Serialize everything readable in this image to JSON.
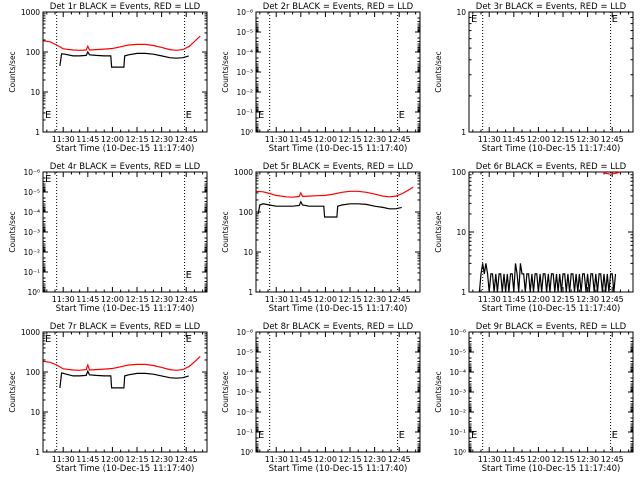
{
  "figure": {
    "x_tick_labels": [
      "11:30",
      "11:45",
      "12:00",
      "12:15",
      "12:30",
      "12:45"
    ],
    "x_tick_minutes": [
      30,
      45,
      60,
      75,
      90,
      105
    ],
    "x_range_minutes": [
      17.67,
      117.67
    ],
    "x_minor_step_minutes": 5,
    "vlines_minutes": [
      26,
      104
    ],
    "marker_glyph": "E",
    "colors": {
      "events": "#000000",
      "lld": "#ff0000"
    }
  },
  "chart_data": [
    {
      "type": "line",
      "title": "Det 1r BLACK = Events, RED = LLD",
      "xlabel": "Start Time (10-Dec-15 11:17:40)",
      "ylabel": "Counts/sec",
      "yscale": "log",
      "ylim": [
        1,
        1000
      ],
      "y_tick_labels": [
        "1",
        "10",
        "100",
        "1000"
      ],
      "markers": [
        "start-left",
        "end-right"
      ],
      "series": [
        {
          "name": "Events",
          "color": "#000000",
          "x": [
            28,
            29,
            31,
            36,
            40,
            44,
            45,
            46,
            50,
            55,
            59,
            59.5,
            67,
            67.5,
            70,
            75,
            80,
            85,
            90,
            95,
            99,
            103,
            106.5
          ],
          "y": [
            45,
            90,
            88,
            80,
            80,
            82,
            100,
            85,
            82,
            80,
            80,
            42,
            42,
            80,
            85,
            92,
            92,
            88,
            80,
            72,
            70,
            72,
            80
          ]
        },
        {
          "name": "LLD",
          "color": "#ff0000",
          "x": [
            18,
            22,
            26,
            30,
            36,
            40,
            44,
            45,
            46,
            50,
            55,
            60,
            65,
            70,
            75,
            80,
            85,
            90,
            95,
            99,
            103,
            107,
            111,
            113.5
          ],
          "y": [
            190,
            180,
            150,
            120,
            112,
            110,
            112,
            140,
            112,
            115,
            118,
            122,
            135,
            150,
            155,
            155,
            145,
            130,
            115,
            110,
            115,
            140,
            200,
            250
          ]
        }
      ]
    },
    {
      "type": "line",
      "title": "Det 2r BLACK = Events, RED = LLD",
      "xlabel": "Start Time (10-Dec-15 11:17:40)",
      "ylabel": "Counts/sec",
      "yscale": "log",
      "ylim": [
        1,
        1e-06
      ],
      "y_tick_labels": [
        "10⁰",
        "10⁻¹",
        "10⁻²",
        "10⁻³",
        "10⁻⁴",
        "10⁻⁵",
        "10⁻⁶"
      ],
      "markers": [
        "start-left",
        "end-right"
      ],
      "series": []
    },
    {
      "type": "line",
      "title": "Det 3r BLACK = Events, RED = LLD",
      "xlabel": "Start Time (10-Dec-15 11:17:40)",
      "ylabel": "Counts/sec",
      "yscale": "log",
      "ylim": [
        1,
        10
      ],
      "y_tick_labels": [
        "1",
        "10"
      ],
      "markers": [
        "start-top-left",
        "end-top-right"
      ],
      "series": []
    },
    {
      "type": "line",
      "title": "Det 4r BLACK = Events, RED = LLD",
      "xlabel": "Start Time (10-Dec-15 11:17:40)",
      "ylabel": "Counts/sec",
      "yscale": "log",
      "ylim": [
        1,
        1e-06
      ],
      "y_tick_labels": [
        "10⁰",
        "10⁻¹",
        "10⁻²",
        "10⁻³",
        "10⁻⁴",
        "10⁻⁵",
        "10⁻⁶"
      ],
      "markers": [
        "start-top-left",
        "end-right"
      ],
      "series": []
    },
    {
      "type": "line",
      "title": "Det 5r BLACK = Events, RED = LLD",
      "xlabel": "Start Time (10-Dec-15 11:17:40)",
      "ylabel": "Counts/sec",
      "yscale": "log",
      "ylim": [
        1,
        1000
      ],
      "y_tick_labels": [
        "1",
        "10",
        "100",
        "1000"
      ],
      "markers": [],
      "series": [
        {
          "name": "Events",
          "color": "#000000",
          "x": [
            19,
            20,
            22,
            26,
            30,
            36,
            40,
            44,
            45,
            46,
            50,
            55,
            59,
            59.5,
            67,
            67.5,
            70,
            75,
            80,
            85,
            90,
            95,
            99,
            103,
            106.5
          ],
          "y": [
            90,
            150,
            160,
            150,
            140,
            140,
            140,
            145,
            180,
            150,
            140,
            140,
            140,
            75,
            75,
            140,
            150,
            160,
            160,
            155,
            140,
            130,
            120,
            120,
            130
          ]
        },
        {
          "name": "LLD",
          "color": "#ff0000",
          "x": [
            18,
            22,
            26,
            30,
            36,
            40,
            44,
            45,
            46,
            50,
            55,
            60,
            65,
            70,
            75,
            80,
            85,
            90,
            95,
            99,
            103,
            107,
            111,
            113.5
          ],
          "y": [
            330,
            320,
            290,
            260,
            240,
            235,
            245,
            300,
            245,
            250,
            255,
            260,
            280,
            310,
            330,
            330,
            310,
            280,
            250,
            240,
            250,
            290,
            360,
            420
          ]
        }
      ]
    },
    {
      "type": "line",
      "title": "Det 6r BLACK = Events, RED = LLD",
      "xlabel": "Start Time (10-Dec-15 11:17:40)",
      "ylabel": "Counts/sec",
      "yscale": "log",
      "ylim": [
        1,
        100
      ],
      "y_tick_labels": [
        "1",
        "10",
        "100"
      ],
      "markers": [],
      "series": [
        {
          "name": "Events",
          "color": "#000000",
          "x": [
            24,
            25,
            26,
            27,
            28,
            29,
            30,
            31,
            32,
            33,
            34,
            35,
            36,
            37,
            38,
            39,
            40,
            41,
            42,
            43,
            44,
            45,
            46,
            47,
            48,
            49,
            50,
            51,
            52,
            53,
            54,
            55,
            56,
            57,
            58,
            59,
            60,
            61,
            62,
            63,
            64,
            65,
            66,
            67,
            68,
            69,
            70,
            71,
            72,
            73,
            74,
            75,
            76,
            77,
            78,
            79,
            80,
            81,
            82,
            83,
            84,
            85,
            86,
            87,
            88,
            89,
            90,
            91,
            92,
            93,
            94,
            95,
            96,
            97,
            98,
            99,
            100,
            101,
            102,
            103,
            104,
            105,
            106,
            107
          ],
          "y": [
            1,
            2,
            3,
            2,
            3,
            2,
            1,
            2,
            2,
            1,
            2,
            1,
            2,
            2,
            1,
            2,
            1,
            2,
            1,
            2,
            2,
            1,
            3,
            2,
            1,
            3,
            2,
            2,
            1,
            2,
            2,
            1,
            2,
            1,
            2,
            2,
            1,
            2,
            1,
            2,
            2,
            1,
            2,
            1,
            2,
            2,
            1,
            2,
            1,
            2,
            1,
            2,
            2,
            1,
            2,
            1,
            2,
            2,
            1,
            2,
            1,
            2,
            1,
            2,
            2,
            1,
            2,
            1,
            2,
            2,
            1,
            2,
            1,
            2,
            2,
            1,
            2,
            1,
            2,
            1,
            2,
            2,
            1,
            2
          ]
        },
        {
          "name": "LLD",
          "color": "#ff0000",
          "x": [
            99,
            101,
            104,
            107,
            110
          ],
          "y": [
            100,
            95,
            92,
            95,
            100
          ]
        }
      ]
    },
    {
      "type": "line",
      "title": "Det 7r BLACK = Events, RED = LLD",
      "xlabel": "Start Time (10-Dec-15 11:17:40)",
      "ylabel": "Counts/sec",
      "yscale": "log",
      "ylim": [
        1,
        1000
      ],
      "y_tick_labels": [
        "1",
        "10",
        "100",
        "1000"
      ],
      "markers": [
        "start-top-left",
        "end-top-right"
      ],
      "series": [
        {
          "name": "Events",
          "color": "#000000",
          "x": [
            28,
            29,
            31,
            36,
            40,
            44,
            45,
            46,
            50,
            55,
            59,
            59.5,
            67,
            67.5,
            70,
            75,
            80,
            85,
            90,
            95,
            99,
            103,
            106.5
          ],
          "y": [
            40,
            95,
            90,
            80,
            80,
            82,
            105,
            85,
            82,
            80,
            80,
            40,
            40,
            80,
            85,
            92,
            92,
            88,
            80,
            72,
            70,
            72,
            80
          ]
        },
        {
          "name": "LLD",
          "color": "#ff0000",
          "x": [
            18,
            22,
            26,
            30,
            36,
            40,
            44,
            45,
            46,
            50,
            55,
            60,
            65,
            70,
            75,
            80,
            85,
            90,
            95,
            99,
            103,
            107,
            111,
            113.5
          ],
          "y": [
            185,
            175,
            150,
            120,
            112,
            110,
            115,
            150,
            112,
            115,
            118,
            122,
            135,
            150,
            155,
            155,
            145,
            130,
            115,
            110,
            115,
            140,
            195,
            245
          ]
        }
      ]
    },
    {
      "type": "line",
      "title": "Det 8r BLACK = Events, RED = LLD",
      "xlabel": "Start Time (10-Dec-15 11:17:40)",
      "ylabel": "Counts/sec",
      "yscale": "log",
      "ylim": [
        1,
        1e-06
      ],
      "y_tick_labels": [
        "10⁰",
        "10⁻¹",
        "10⁻²",
        "10⁻³",
        "10⁻⁴",
        "10⁻⁵",
        "10⁻⁶"
      ],
      "markers": [
        "start-left",
        "end-right"
      ],
      "series": []
    },
    {
      "type": "line",
      "title": "Det 9r BLACK = Events, RED = LLD",
      "xlabel": "Start Time (10-Dec-15 11:17:40)",
      "ylabel": "Counts/sec",
      "yscale": "log",
      "ylim": [
        1,
        1e-06
      ],
      "y_tick_labels": [
        "10⁰",
        "10⁻¹",
        "10⁻²",
        "10⁻³",
        "10⁻⁴",
        "10⁻⁵",
        "10⁻⁶"
      ],
      "markers": [
        "start-left",
        "end-right"
      ],
      "series": []
    }
  ]
}
